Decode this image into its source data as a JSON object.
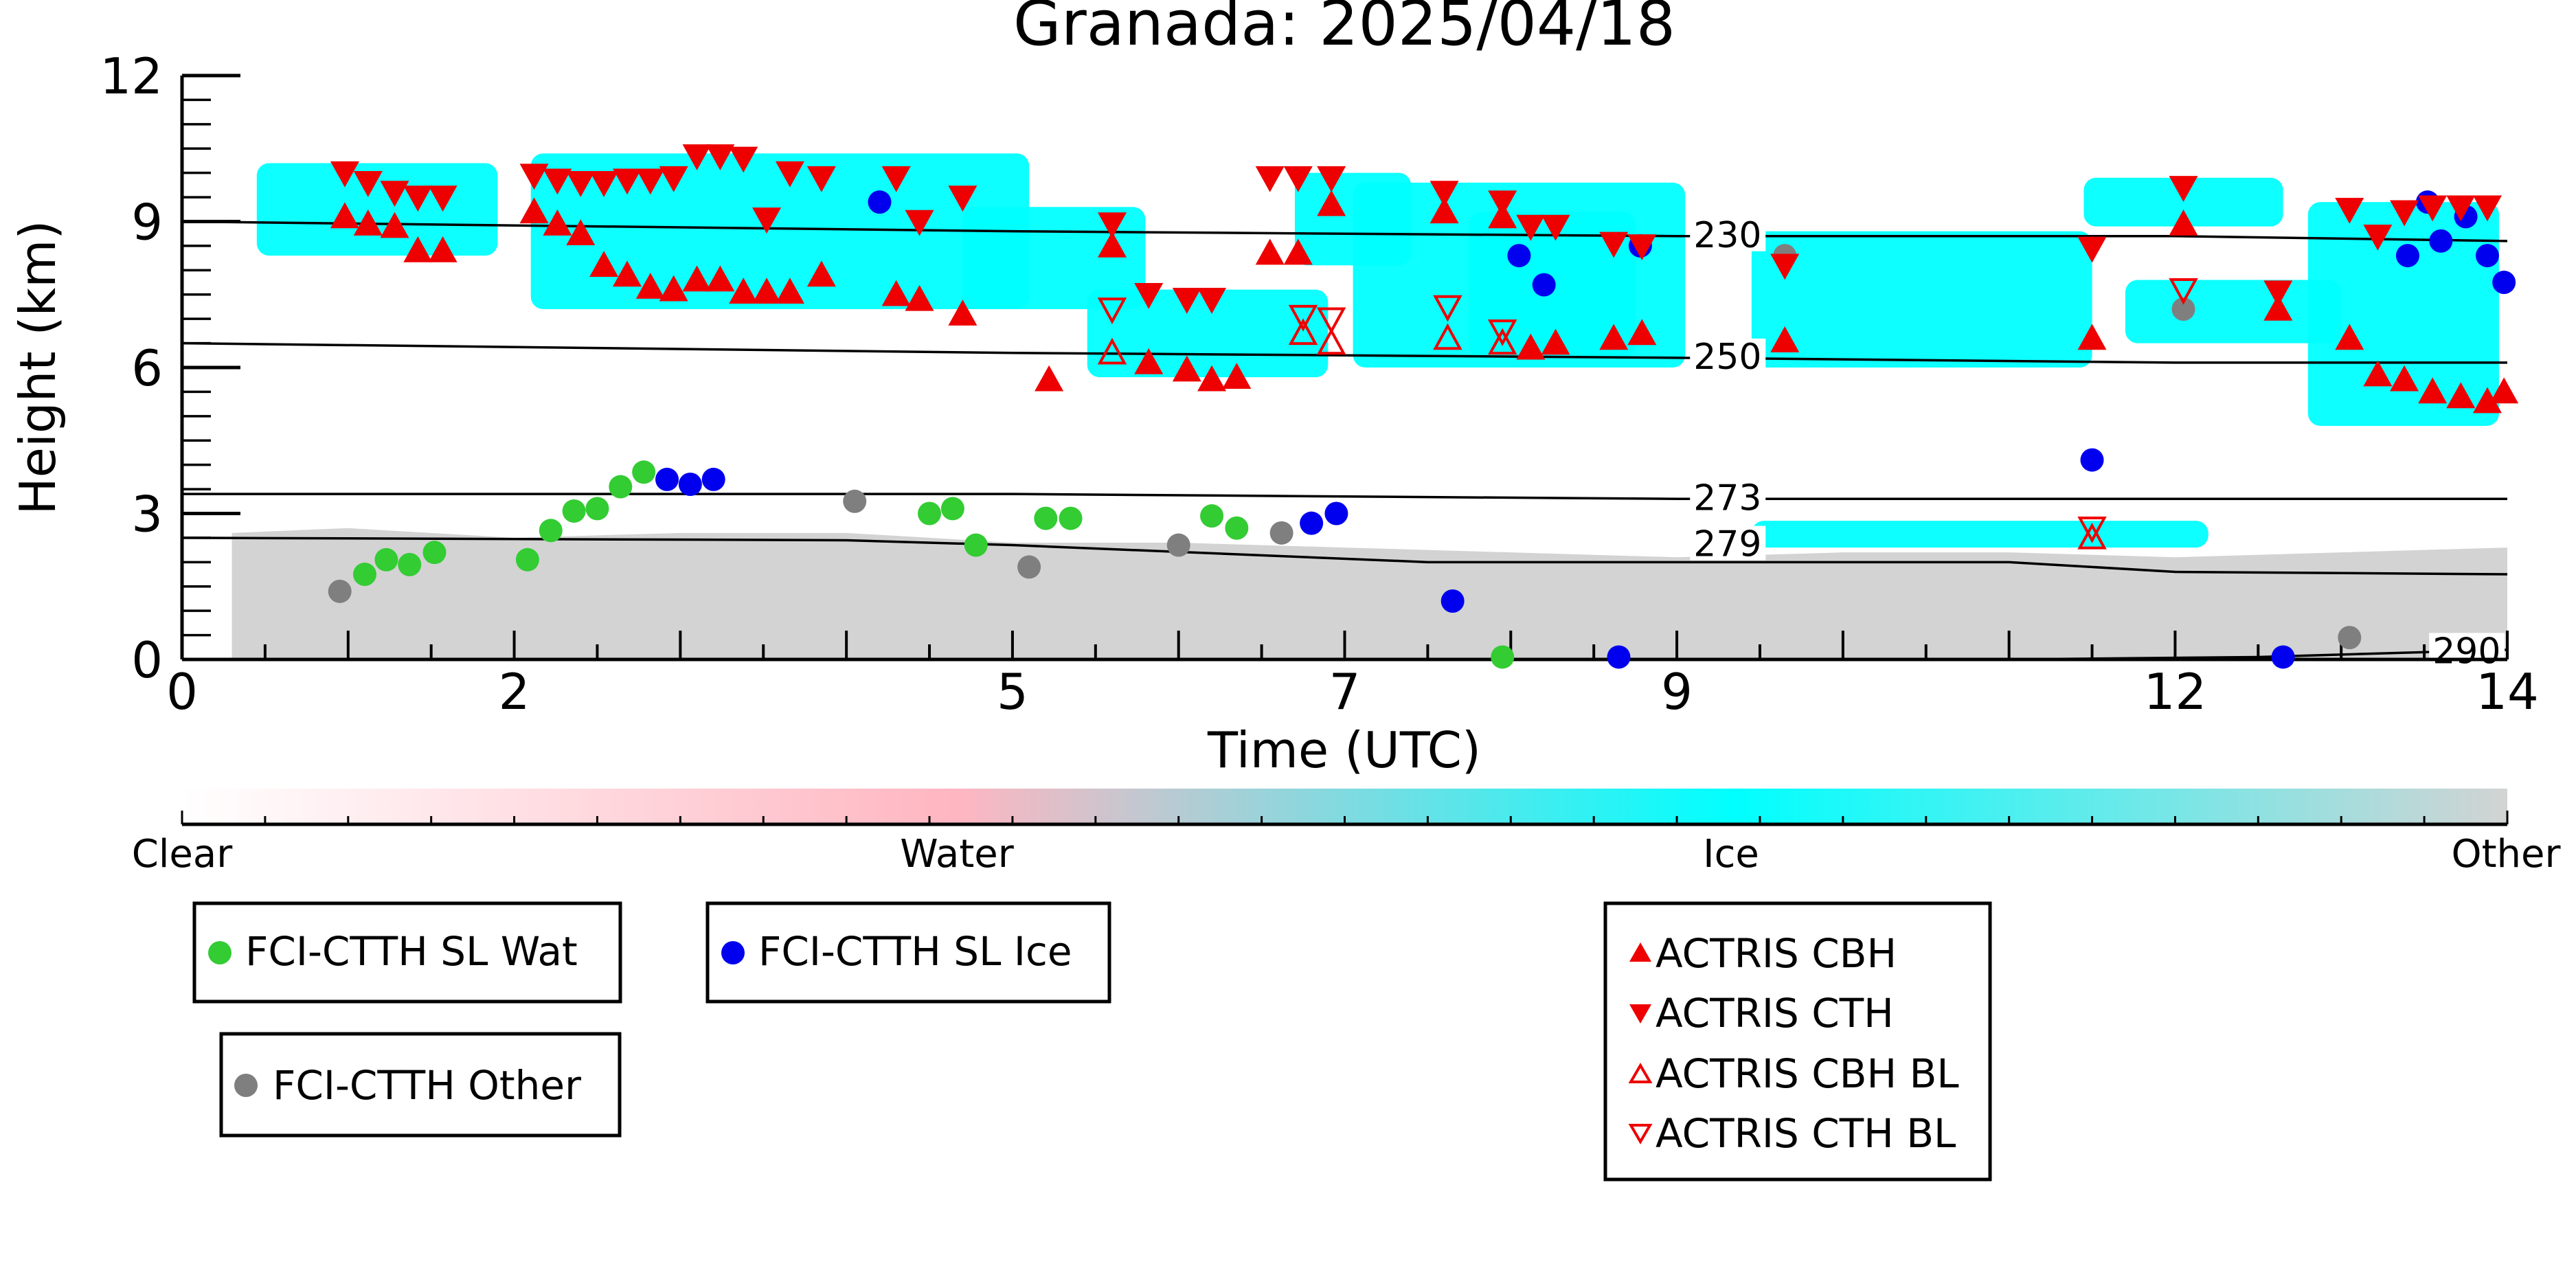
{
  "chart_data": {
    "type": "scatter",
    "title": "Granada: 2025/04/18",
    "xlabel": "Time (UTC)",
    "ylabel": "Height (km)",
    "xlim": [
      0,
      14
    ],
    "ylim": [
      0,
      12
    ],
    "x_ticks": [
      0,
      2,
      5,
      7,
      9,
      12,
      14
    ],
    "y_ticks": [
      0,
      3,
      6,
      9,
      12
    ],
    "grid": false,
    "background_other_top_km": [
      [
        0.3,
        2.6
      ],
      [
        1.0,
        2.7
      ],
      [
        2.0,
        2.5
      ],
      [
        3.0,
        2.6
      ],
      [
        4.0,
        2.6
      ],
      [
        5.0,
        2.4
      ],
      [
        6.0,
        2.4
      ],
      [
        7.0,
        2.3
      ],
      [
        8.0,
        2.2
      ],
      [
        9.0,
        2.1
      ],
      [
        10.0,
        2.2
      ],
      [
        11.0,
        2.2
      ],
      [
        12.0,
        2.1
      ],
      [
        13.0,
        2.2
      ],
      [
        14.0,
        2.3
      ]
    ],
    "ice_regions_km": [
      {
        "x0": 0.45,
        "x1": 1.9,
        "y0": 8.3,
        "y1": 10.2
      },
      {
        "x0": 2.1,
        "x1": 5.1,
        "y0": 7.2,
        "y1": 10.4
      },
      {
        "x0": 4.7,
        "x1": 5.8,
        "y0": 7.2,
        "y1": 9.3
      },
      {
        "x0": 5.45,
        "x1": 6.9,
        "y0": 5.8,
        "y1": 7.6
      },
      {
        "x0": 6.7,
        "x1": 7.4,
        "y0": 8.1,
        "y1": 10.0
      },
      {
        "x0": 7.05,
        "x1": 9.05,
        "y0": 6.0,
        "y1": 9.8
      },
      {
        "x0": 7.75,
        "x1": 8.75,
        "y0": 6.2,
        "y1": 9.2
      },
      {
        "x0": 8.0,
        "x1": 8.75,
        "y0": 6.2,
        "y1": 8.6
      },
      {
        "x0": 9.45,
        "x1": 11.5,
        "y0": 6.0,
        "y1": 8.8
      },
      {
        "x0": 11.45,
        "x1": 12.65,
        "y0": 8.9,
        "y1": 9.9
      },
      {
        "x0": 11.7,
        "x1": 13.0,
        "y0": 6.5,
        "y1": 7.8
      },
      {
        "x0": 12.8,
        "x1": 13.95,
        "y0": 4.8,
        "y1": 9.4
      },
      {
        "x0": 9.45,
        "x1": 12.2,
        "y0": 2.3,
        "y1": 2.85
      }
    ],
    "isotherms": [
      {
        "label": "230",
        "points": [
          [
            0,
            9.0
          ],
          [
            5,
            8.8
          ],
          [
            9,
            8.7
          ],
          [
            12,
            8.7
          ],
          [
            14,
            8.6
          ]
        ]
      },
      {
        "label": "250",
        "points": [
          [
            0,
            6.5
          ],
          [
            5,
            6.3
          ],
          [
            9,
            6.2
          ],
          [
            12,
            6.1
          ],
          [
            14,
            6.1
          ]
        ]
      },
      {
        "label": "273",
        "points": [
          [
            0,
            3.4
          ],
          [
            5,
            3.4
          ],
          [
            9,
            3.3
          ],
          [
            12,
            3.3
          ],
          [
            14,
            3.3
          ]
        ]
      },
      {
        "label": "279",
        "points": [
          [
            0,
            2.5
          ],
          [
            4,
            2.45
          ],
          [
            5,
            2.35
          ],
          [
            7.5,
            2.0
          ],
          [
            9,
            2.0
          ],
          [
            11,
            2.0
          ],
          [
            12,
            1.8
          ],
          [
            14,
            1.75
          ]
        ]
      },
      {
        "label": "290",
        "points": [
          [
            9,
            0.0
          ],
          [
            11,
            0.0
          ],
          [
            12.5,
            0.05
          ],
          [
            13.5,
            0.15
          ],
          [
            14,
            0.2
          ]
        ]
      }
    ],
    "series": [
      {
        "name": "FCI-CTTH SL Wat",
        "color": "#33cc33",
        "marker": "circle",
        "points": [
          [
            1.1,
            1.75
          ],
          [
            1.23,
            2.05
          ],
          [
            1.37,
            1.95
          ],
          [
            1.52,
            2.2
          ],
          [
            2.08,
            2.05
          ],
          [
            2.22,
            2.65
          ],
          [
            2.36,
            3.05
          ],
          [
            2.5,
            3.1
          ],
          [
            2.64,
            3.55
          ],
          [
            2.78,
            3.85
          ],
          [
            4.5,
            3.0
          ],
          [
            4.64,
            3.1
          ],
          [
            4.78,
            2.35
          ],
          [
            5.2,
            2.9
          ],
          [
            5.35,
            2.9
          ],
          [
            6.2,
            2.95
          ],
          [
            6.35,
            2.7
          ],
          [
            7.95,
            0.05
          ]
        ]
      },
      {
        "name": "FCI-CTTH SL Ice",
        "color": "#0000ee",
        "marker": "circle",
        "points": [
          [
            2.92,
            3.7
          ],
          [
            3.06,
            3.6
          ],
          [
            3.2,
            3.7
          ],
          [
            4.2,
            9.4
          ],
          [
            6.8,
            2.8
          ],
          [
            6.95,
            3.0
          ],
          [
            7.65,
            1.2
          ],
          [
            8.05,
            8.3
          ],
          [
            8.2,
            7.7
          ],
          [
            8.78,
            8.5
          ],
          [
            8.65,
            0.05
          ],
          [
            11.5,
            4.1
          ],
          [
            12.65,
            0.05
          ],
          [
            13.4,
            8.3
          ],
          [
            13.52,
            9.4
          ],
          [
            13.6,
            8.6
          ],
          [
            13.75,
            9.1
          ],
          [
            13.88,
            8.3
          ],
          [
            13.98,
            7.75
          ]
        ]
      },
      {
        "name": "FCI-CTTH Other",
        "color": "#7f7f7f",
        "marker": "circle",
        "points": [
          [
            0.95,
            1.4
          ],
          [
            4.05,
            3.25
          ],
          [
            5.1,
            1.9
          ],
          [
            6.0,
            2.35
          ],
          [
            6.62,
            2.6
          ],
          [
            9.65,
            8.3
          ],
          [
            12.05,
            7.2
          ],
          [
            13.05,
            0.45
          ]
        ]
      },
      {
        "name": "ACTRIS CBH",
        "color": "#ee0000",
        "marker": "triangle-up-filled",
        "points": [
          [
            0.98,
            9.1
          ],
          [
            1.12,
            8.95
          ],
          [
            1.28,
            8.9
          ],
          [
            1.42,
            8.4
          ],
          [
            1.57,
            8.4
          ],
          [
            2.12,
            9.2
          ],
          [
            2.26,
            8.95
          ],
          [
            2.4,
            8.75
          ],
          [
            2.54,
            8.1
          ],
          [
            2.68,
            7.9
          ],
          [
            2.82,
            7.65
          ],
          [
            2.96,
            7.6
          ],
          [
            3.1,
            7.8
          ],
          [
            3.24,
            7.8
          ],
          [
            3.38,
            7.55
          ],
          [
            3.52,
            7.55
          ],
          [
            3.66,
            7.55
          ],
          [
            3.85,
            7.9
          ],
          [
            4.3,
            7.5
          ],
          [
            4.44,
            7.4
          ],
          [
            4.7,
            7.1
          ],
          [
            5.22,
            5.75
          ],
          [
            5.6,
            8.5
          ],
          [
            5.82,
            6.1
          ],
          [
            6.05,
            5.95
          ],
          [
            6.2,
            5.75
          ],
          [
            6.35,
            5.8
          ],
          [
            6.55,
            8.35
          ],
          [
            6.72,
            8.35
          ],
          [
            6.92,
            9.35
          ],
          [
            7.6,
            9.2
          ],
          [
            7.95,
            9.1
          ],
          [
            8.12,
            6.4
          ],
          [
            8.27,
            6.5
          ],
          [
            8.62,
            6.6
          ],
          [
            8.79,
            6.7
          ],
          [
            9.65,
            6.55
          ],
          [
            11.5,
            6.6
          ],
          [
            12.05,
            8.95
          ],
          [
            12.62,
            7.2
          ],
          [
            13.05,
            6.6
          ],
          [
            13.22,
            5.85
          ],
          [
            13.38,
            5.75
          ],
          [
            13.55,
            5.5
          ],
          [
            13.72,
            5.4
          ],
          [
            13.88,
            5.3
          ],
          [
            13.98,
            5.5
          ]
        ]
      },
      {
        "name": "ACTRIS CTH",
        "color": "#ee0000",
        "marker": "triangle-down-filled",
        "points": [
          [
            0.98,
            10.0
          ],
          [
            1.12,
            9.8
          ],
          [
            1.28,
            9.6
          ],
          [
            1.42,
            9.5
          ],
          [
            1.57,
            9.5
          ],
          [
            2.12,
            9.95
          ],
          [
            2.26,
            9.85
          ],
          [
            2.4,
            9.8
          ],
          [
            2.54,
            9.8
          ],
          [
            2.68,
            9.85
          ],
          [
            2.82,
            9.85
          ],
          [
            2.96,
            9.9
          ],
          [
            3.1,
            10.35
          ],
          [
            3.24,
            10.35
          ],
          [
            3.38,
            10.3
          ],
          [
            3.52,
            9.05
          ],
          [
            3.66,
            10.0
          ],
          [
            3.85,
            9.9
          ],
          [
            4.3,
            9.9
          ],
          [
            4.44,
            9.0
          ],
          [
            4.7,
            9.5
          ],
          [
            5.6,
            8.95
          ],
          [
            5.82,
            7.5
          ],
          [
            6.05,
            7.4
          ],
          [
            6.2,
            7.4
          ],
          [
            6.55,
            9.9
          ],
          [
            6.72,
            9.9
          ],
          [
            6.92,
            9.9
          ],
          [
            7.6,
            9.6
          ],
          [
            7.95,
            9.4
          ],
          [
            8.12,
            8.9
          ],
          [
            8.27,
            8.9
          ],
          [
            8.62,
            8.55
          ],
          [
            8.79,
            8.5
          ],
          [
            9.65,
            8.1
          ],
          [
            11.5,
            8.45
          ],
          [
            12.05,
            9.7
          ],
          [
            12.62,
            7.55
          ],
          [
            13.05,
            9.25
          ],
          [
            13.22,
            8.7
          ],
          [
            13.38,
            9.2
          ],
          [
            13.55,
            9.3
          ],
          [
            13.72,
            9.3
          ],
          [
            13.88,
            9.3
          ]
        ]
      },
      {
        "name": "ACTRIS CBH BL",
        "color": "#ee0000",
        "marker": "triangle-up-open",
        "points": [
          [
            5.6,
            6.3
          ],
          [
            6.75,
            6.7
          ],
          [
            6.92,
            6.5
          ],
          [
            7.62,
            6.6
          ],
          [
            7.95,
            6.5
          ],
          [
            11.5,
            2.5
          ]
        ]
      },
      {
        "name": "ACTRIS CTH BL",
        "color": "#ee0000",
        "marker": "triangle-down-open",
        "points": [
          [
            5.6,
            7.2
          ],
          [
            6.75,
            7.05
          ],
          [
            6.92,
            7.0
          ],
          [
            7.62,
            7.25
          ],
          [
            7.95,
            6.75
          ],
          [
            11.5,
            2.7
          ],
          [
            12.05,
            7.6
          ]
        ]
      }
    ],
    "colorbar": {
      "labels": [
        "Clear",
        "Water",
        "Ice",
        "Other"
      ],
      "colors": [
        "#ffffff",
        "#ffb6c1",
        "#00ffff",
        "#d3d3d3"
      ]
    },
    "legends": [
      {
        "entries": [
          "FCI-CTTH SL Wat"
        ]
      },
      {
        "entries": [
          "FCI-CTTH SL Ice"
        ]
      },
      {
        "entries": [
          "FCI-CTTH Other"
        ]
      },
      {
        "entries": [
          "ACTRIS CBH",
          "ACTRIS CTH",
          "ACTRIS CBH BL",
          "ACTRIS CTH BL"
        ]
      }
    ]
  }
}
